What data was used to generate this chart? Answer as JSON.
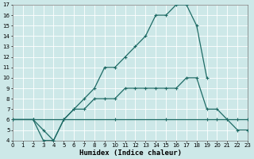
{
  "xlabel": "Humidex (Indice chaleur)",
  "xlim": [
    0,
    23
  ],
  "ylim": [
    4,
    17
  ],
  "xticks": [
    0,
    1,
    2,
    3,
    4,
    5,
    6,
    7,
    8,
    9,
    10,
    11,
    12,
    13,
    14,
    15,
    16,
    17,
    18,
    19,
    20,
    21,
    22,
    23
  ],
  "yticks": [
    4,
    5,
    6,
    7,
    8,
    9,
    10,
    11,
    12,
    13,
    14,
    15,
    16,
    17
  ],
  "bg_color": "#cde8e8",
  "line_color": "#1e6b65",
  "grid_color": "#ffffff",
  "line1_x": [
    0,
    2,
    3,
    4,
    5,
    6,
    7,
    8,
    9,
    10,
    11,
    12,
    13,
    14,
    15,
    16,
    17,
    18,
    19
  ],
  "line1_y": [
    6,
    6,
    4,
    4,
    6,
    7,
    8,
    9,
    11,
    11,
    12,
    13,
    14,
    16,
    16,
    17,
    17,
    15,
    10
  ],
  "line2_x": [
    0,
    2,
    3,
    4,
    5,
    6,
    7,
    8,
    9,
    10,
    11,
    12,
    13,
    14,
    15,
    16,
    17,
    18,
    19,
    20,
    21,
    22,
    23
  ],
  "line2_y": [
    6,
    6,
    5,
    4,
    6,
    7,
    7,
    8,
    8,
    8,
    9,
    9,
    9,
    9,
    9,
    9,
    10,
    10,
    7,
    7,
    6,
    5,
    5
  ],
  "line3_x": [
    0,
    2,
    5,
    10,
    15,
    19,
    20,
    21,
    22,
    23
  ],
  "line3_y": [
    6,
    6,
    6,
    6,
    6,
    6,
    6,
    6,
    6,
    6
  ]
}
